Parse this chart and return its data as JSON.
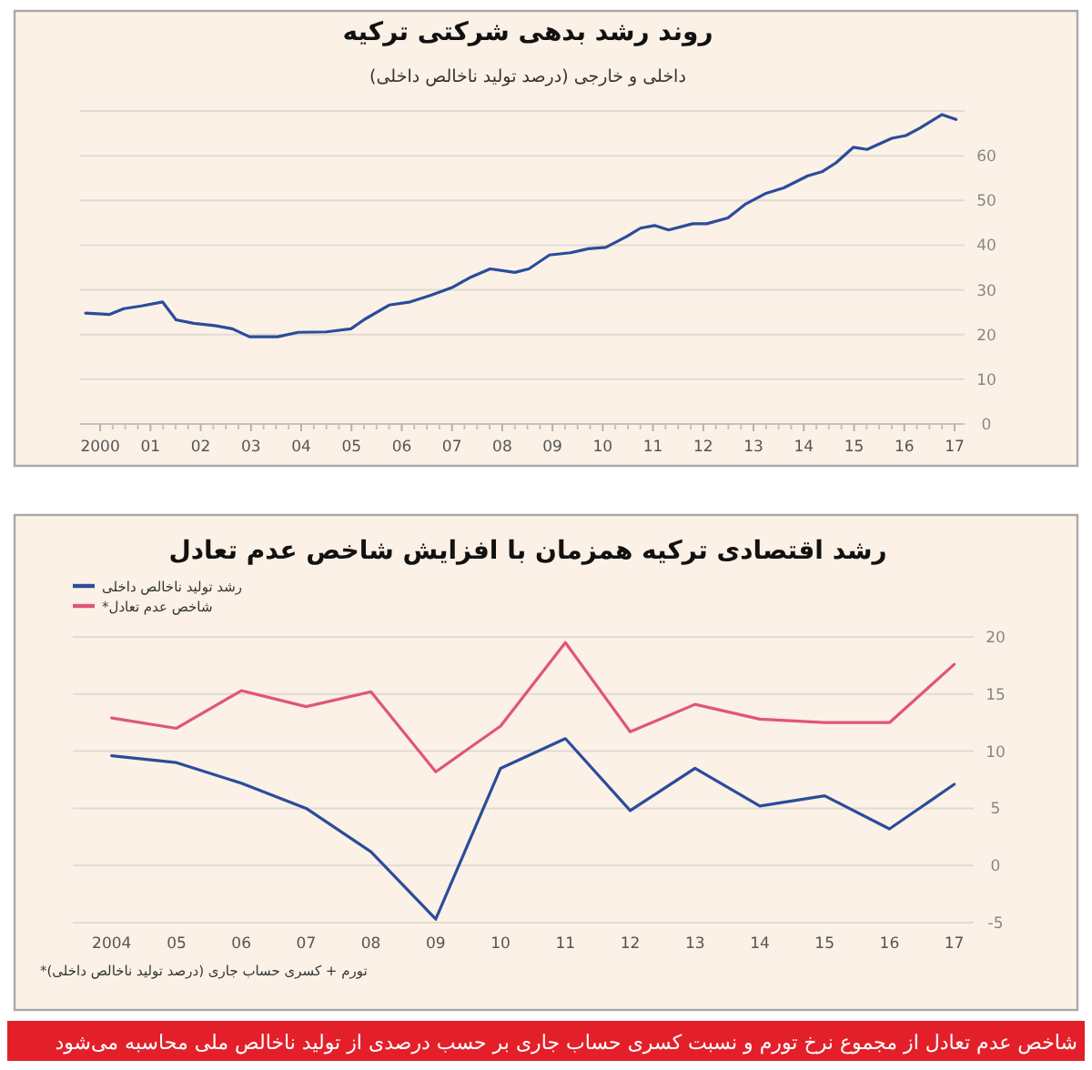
{
  "chart_data": [
    {
      "type": "line",
      "title": "روند رشد بدهی شرکتی ترکیه",
      "subtitle": "داخلی و خارجی (درصد تولید ناخالص داخلی)",
      "x": [
        1999.71,
        2000.19,
        2000.47,
        2000.82,
        2001.24,
        2001.51,
        2001.86,
        2002.28,
        2002.63,
        2002.97,
        2003.53,
        2003.94,
        2004.5,
        2004.99,
        2005.26,
        2005.75,
        2006.17,
        2006.58,
        2007.0,
        2007.35,
        2007.76,
        2008.25,
        2008.53,
        2008.94,
        2009.36,
        2009.71,
        2010.06,
        2010.47,
        2010.75,
        2011.03,
        2011.31,
        2011.79,
        2012.07,
        2012.49,
        2012.83,
        2013.25,
        2013.6,
        2014.08,
        2014.36,
        2014.64,
        2014.99,
        2015.26,
        2015.75,
        2016.03,
        2016.3,
        2016.75,
        2017.03
      ],
      "series": [
        {
          "color": "#2b4c9b",
          "values": [
            24.8,
            24.5,
            25.8,
            26.4,
            27.3,
            23.3,
            22.5,
            22.0,
            21.3,
            19.5,
            19.5,
            20.5,
            20.6,
            21.3,
            23.4,
            26.6,
            27.3,
            28.8,
            30.5,
            32.7,
            34.7,
            33.9,
            34.7,
            37.8,
            38.3,
            39.2,
            39.5,
            41.9,
            43.8,
            44.4,
            43.4,
            44.8,
            44.8,
            46.1,
            49.1,
            51.6,
            52.8,
            55.5,
            56.4,
            58.4,
            61.9,
            61.4,
            63.9,
            64.5,
            66.1,
            69.2,
            68.1
          ]
        }
      ],
      "xlim": [
        1999.6,
        2017.2
      ],
      "xticks": [
        {
          "value": 2000,
          "label": "2000"
        },
        {
          "value": 2001,
          "label": "01"
        },
        {
          "value": 2002,
          "label": "02"
        },
        {
          "value": 2003,
          "label": "03"
        },
        {
          "value": 2004,
          "label": "04"
        },
        {
          "value": 2005,
          "label": "05"
        },
        {
          "value": 2006,
          "label": "06"
        },
        {
          "value": 2007,
          "label": "07"
        },
        {
          "value": 2008,
          "label": "08"
        },
        {
          "value": 2009,
          "label": "09"
        },
        {
          "value": 2010,
          "label": "10"
        },
        {
          "value": 2011,
          "label": "11"
        },
        {
          "value": 2012,
          "label": "12"
        },
        {
          "value": 2013,
          "label": "13"
        },
        {
          "value": 2014,
          "label": "14"
        },
        {
          "value": 2015,
          "label": "15"
        },
        {
          "value": 2016,
          "label": "16"
        },
        {
          "value": 2017,
          "label": "17"
        }
      ],
      "ylim": [
        0,
        70
      ],
      "yticks": [
        0,
        10,
        20,
        30,
        40,
        50,
        60,
        {
          "value": 70,
          "label": null
        }
      ],
      "grid": "y"
    },
    {
      "type": "line",
      "title": "رشد اقتصادی ترکیه همزمان با افزایش شاخص عدم تعادل",
      "categories": [
        "2004",
        "05",
        "06",
        "07",
        "08",
        "09",
        "10",
        "11",
        "12",
        "13",
        "14",
        "15",
        "16",
        "17"
      ],
      "series": [
        {
          "name": "رشد تولید ناخالص داخلی",
          "color": "#2b4c9b",
          "values": [
            9.6,
            9.0,
            7.2,
            5.0,
            1.2,
            -4.7,
            8.5,
            11.1,
            4.8,
            8.5,
            5.2,
            6.1,
            3.2,
            7.1
          ]
        },
        {
          "name": "شاخص عدم تعادل*",
          "color": "#e0557a",
          "values": [
            12.9,
            12.0,
            15.3,
            13.9,
            15.2,
            8.2,
            12.2,
            19.5,
            11.7,
            14.1,
            12.8,
            12.5,
            12.5,
            17.6
          ]
        }
      ],
      "ylim": [
        -5,
        20
      ],
      "yticks": [
        -5,
        0,
        5,
        10,
        15,
        20
      ],
      "grid": "y",
      "legend": "top left",
      "annotations": [
        "تورم + کسری حساب جاری (درصد تولید ناخالص داخلی)*",
        "شاخص عدم تعادل از مجموع نرخ تورم و نسبت کسری حساب جاری بر حسب درصدی از تولید ناخالص ملی محاسبه می‌شود"
      ]
    }
  ]
}
